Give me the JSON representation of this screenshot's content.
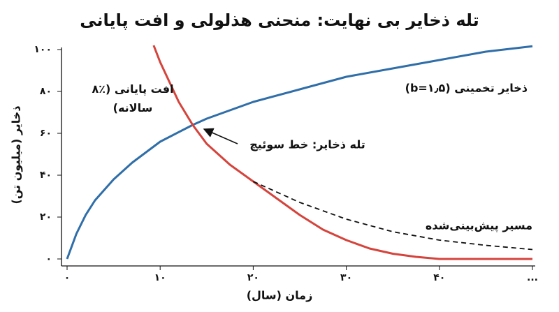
{
  "chart_data": {
    "type": "line",
    "title": "تله ذخایر بی نهایت: منحنی هذلولی و افت پایانی",
    "xlabel": "زمان (سال)",
    "ylabel": "ذخایر (میلیون تن)",
    "xlim": [
      0,
      50
    ],
    "ylim": [
      0,
      100
    ],
    "xticks": [
      0,
      10,
      20,
      30,
      40,
      {
        "value": 50,
        "label": "..."
      }
    ],
    "yticks": [
      0,
      {
        "value": 20,
        "label": "۲۰"
      },
      {
        "value": 40,
        "label": "۴۰"
      },
      {
        "value": 60,
        "label": "۶۰"
      },
      {
        "value": 80,
        "label": "۸۰"
      },
      {
        "value": 100,
        "label": "۱۰۰"
      }
    ],
    "xtick_labels": [
      "۰",
      "۱۰",
      "۲۰",
      "۳۰",
      "۴۰"
    ],
    "ytick_zero_label": "۰",
    "series": [
      {
        "name": "ذخایر تخمینی (b=۱٫۵)",
        "color": "#2f6ea8",
        "style": "solid",
        "x": [
          0,
          1,
          2,
          3,
          5,
          7,
          10,
          13.5,
          15,
          20,
          25,
          30,
          35,
          40,
          45,
          50
        ],
        "values": [
          0,
          12,
          21,
          28,
          38,
          46,
          56,
          64,
          67,
          75,
          81,
          87,
          91,
          95,
          99,
          101.6
        ]
      },
      {
        "name": "افت پایانی (٪۸ سالانه)",
        "color": "#d5443c",
        "style": "solid",
        "x": [
          9.3,
          10,
          12,
          13.5,
          15,
          17.5,
          20,
          22.5,
          25,
          27.5,
          30,
          32.5,
          35,
          37.5,
          40,
          45,
          50
        ],
        "values": [
          102,
          94,
          75,
          64,
          55,
          45,
          37,
          29,
          21,
          14,
          9,
          5,
          2.5,
          1,
          0,
          0,
          0
        ]
      },
      {
        "name": "مسیر پیش‌بینی‌شده",
        "color": "#111111",
        "style": "dashed",
        "x": [
          20,
          25,
          30,
          35,
          40,
          45,
          50
        ],
        "values": [
          37,
          27,
          19,
          13,
          9,
          6.5,
          4.5
        ]
      }
    ],
    "annotation": "تله ذخایر: خط سوئیچ"
  }
}
